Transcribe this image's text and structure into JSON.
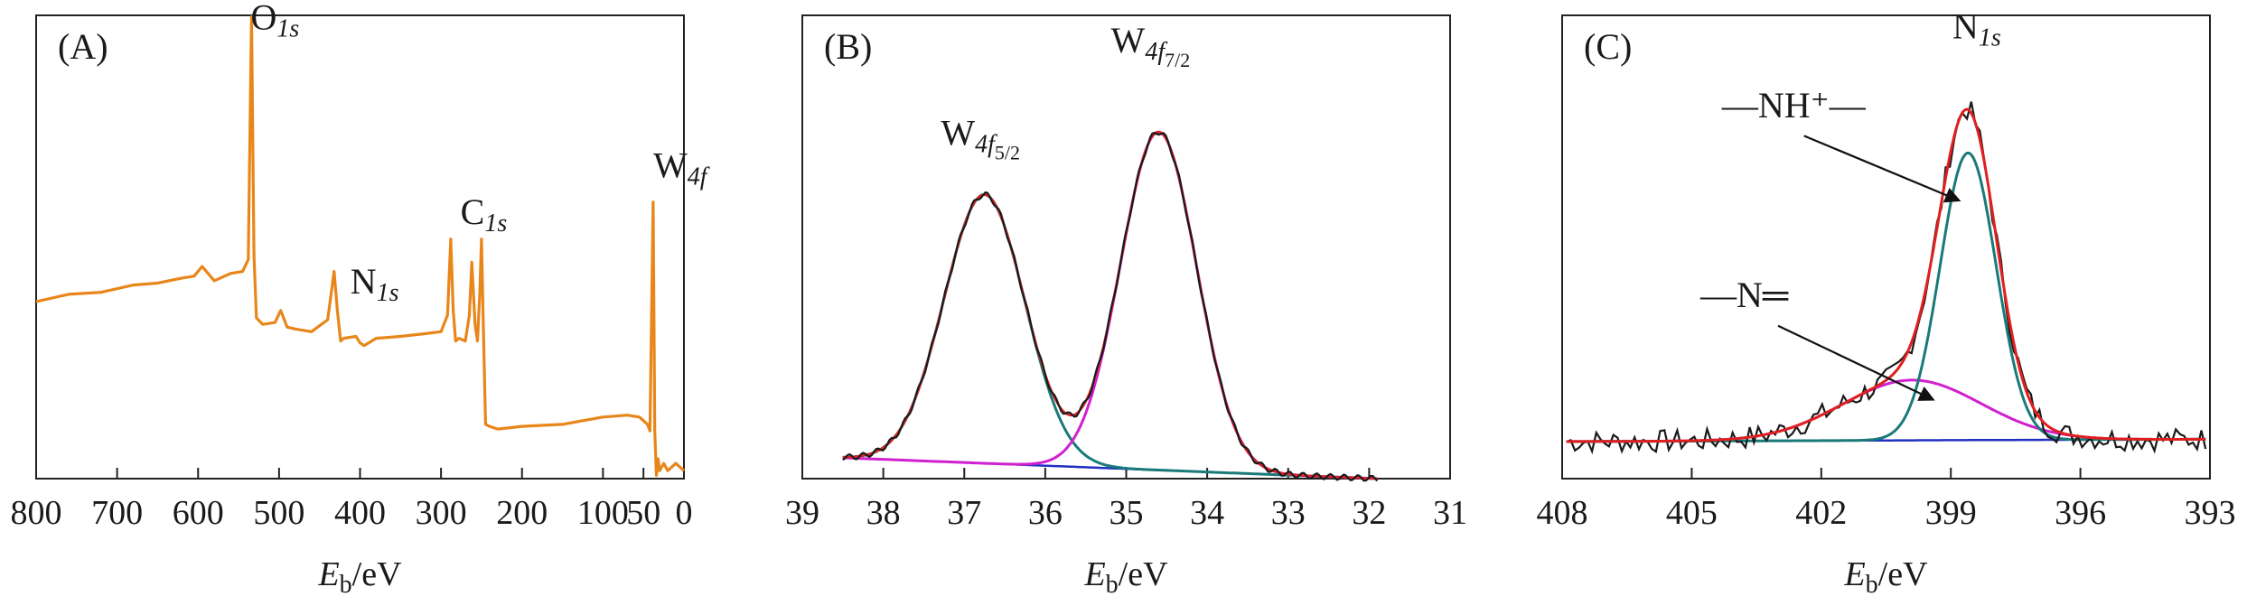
{
  "chart_data": [
    {
      "type": "line",
      "panel": "(A)",
      "xlabel_main": "E",
      "xlabel_sub": "b",
      "xlabel_unit": "/eV",
      "xlim": [
        800,
        0
      ],
      "xticks": [
        "800",
        "700",
        "600",
        "500",
        "400",
        "300",
        "200",
        "100",
        "50",
        "0"
      ],
      "xtick_values": [
        800,
        700,
        600,
        500,
        400,
        300,
        200,
        100,
        50,
        0
      ],
      "ylim": [
        0,
        1
      ],
      "colors": {
        "survey": "#e8861a"
      },
      "series": [
        {
          "name": "survey",
          "x": [
            800,
            760,
            720,
            680,
            650,
            620,
            605,
            595,
            580,
            560,
            545,
            538,
            534,
            531,
            528,
            520,
            505,
            498,
            490,
            480,
            460,
            440,
            432,
            428,
            424,
            420,
            405,
            400,
            395,
            380,
            350,
            320,
            300,
            292,
            288,
            285,
            282,
            278,
            270,
            265,
            262,
            258,
            255,
            252,
            250,
            248,
            245,
            240,
            230,
            200,
            150,
            100,
            70,
            55,
            45,
            42,
            38,
            36,
            34,
            32,
            30,
            25,
            20,
            10,
            0
          ],
          "y": [
            0.385,
            0.395,
            0.405,
            0.415,
            0.425,
            0.43,
            0.44,
            0.455,
            0.43,
            0.44,
            0.45,
            0.47,
            1.0,
            0.48,
            0.35,
            0.33,
            0.34,
            0.36,
            0.33,
            0.32,
            0.32,
            0.34,
            0.45,
            0.36,
            0.3,
            0.3,
            0.31,
            0.29,
            0.29,
            0.3,
            0.31,
            0.31,
            0.32,
            0.35,
            0.52,
            0.36,
            0.3,
            0.3,
            0.3,
            0.35,
            0.47,
            0.33,
            0.3,
            0.4,
            0.52,
            0.35,
            0.12,
            0.11,
            0.11,
            0.11,
            0.12,
            0.13,
            0.14,
            0.13,
            0.12,
            0.1,
            0.6,
            0.1,
            0.01,
            0.04,
            0.02,
            0.03,
            0.02,
            0.03,
            0.02
          ]
        }
      ],
      "annotations": [
        {
          "text": "O",
          "sub": "1s",
          "x": 535,
          "y": 0.97
        },
        {
          "text": "N",
          "sub": "1s",
          "x": 412,
          "y": 0.4
        },
        {
          "text": "C",
          "sub": "1s",
          "x": 276,
          "y": 0.55
        },
        {
          "text": "W",
          "sub": "4f",
          "x": 38,
          "y": 0.65
        }
      ]
    },
    {
      "type": "line",
      "panel": "(B)",
      "xlabel_main": "E",
      "xlabel_sub": "b",
      "xlabel_unit": "/eV",
      "xlim": [
        39,
        31
      ],
      "xticks": [
        "39",
        "38",
        "37",
        "36",
        "35",
        "34",
        "33",
        "32",
        "31"
      ],
      "xtick_values": [
        39,
        38,
        37,
        36,
        35,
        34,
        33,
        32,
        31
      ],
      "ylim": [
        0,
        1
      ],
      "colors": {
        "raw": "#1a1a1a",
        "fit": "#e02020",
        "w52": "#1a7a7a",
        "w72": "#d020d0",
        "baseline": "#2030c0"
      },
      "peaks": [
        {
          "name": "W4f5/2",
          "center": 36.75,
          "height": 0.58,
          "sigma": 0.5
        },
        {
          "name": "W4f7/2",
          "center": 34.6,
          "height": 0.73,
          "sigma": 0.47
        }
      ],
      "baseline": {
        "start": 0.045,
        "end": 0.0
      },
      "annotations": [
        {
          "text": "W",
          "sub": "4f",
          "subsub": "5/2",
          "x": 36.8,
          "y": 0.72
        },
        {
          "text": "W",
          "sub": "4f",
          "subsub": "7/2",
          "x": 34.7,
          "y": 0.92
        }
      ]
    },
    {
      "type": "line",
      "panel": "(C)",
      "xlabel_main": "E",
      "xlabel_sub": "b",
      "xlabel_unit": "/eV",
      "xlim": [
        408,
        393
      ],
      "xticks": [
        "408",
        "405",
        "402",
        "399",
        "396",
        "393"
      ],
      "xtick_values": [
        408,
        405,
        402,
        399,
        396,
        393
      ],
      "ylim": [
        0,
        1
      ],
      "colors": {
        "raw": "#1a1a1a",
        "fit": "#e02020",
        "nh": "#1a7a7a",
        "n": "#d020d0",
        "baseline": "#2030c0"
      },
      "peaks": [
        {
          "name": "NH+",
          "center": 398.6,
          "height": 0.62,
          "sigma": 0.65
        },
        {
          "name": "N=",
          "center": 399.9,
          "height": 0.13,
          "sigma": 1.6
        }
      ],
      "baseline": {
        "start": 0.08,
        "end": 0.085
      },
      "annotations": [
        {
          "text": "N",
          "sub": "1s",
          "x": 398.4,
          "y": 0.95
        },
        {
          "text": "—NH⁺—",
          "x": 404.3,
          "y": 0.78
        },
        {
          "text": "—N═",
          "x": 404.8,
          "y": 0.37
        }
      ]
    }
  ]
}
